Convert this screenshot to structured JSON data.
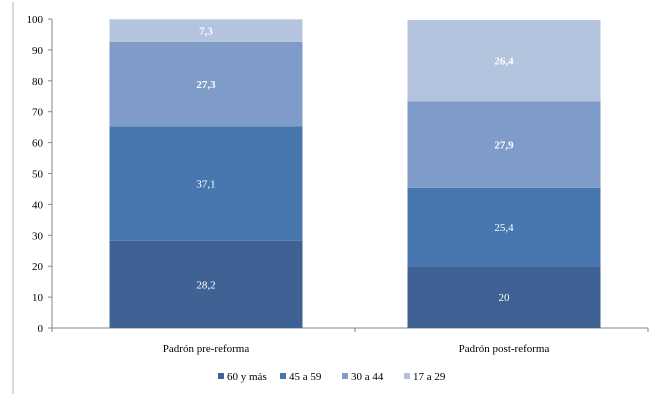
{
  "chart_data": {
    "type": "bar",
    "stacked": true,
    "title": "",
    "xlabel": "",
    "ylabel": "",
    "ylim": [
      0,
      100
    ],
    "yticks": [
      0,
      10,
      20,
      30,
      40,
      50,
      60,
      70,
      80,
      90,
      100
    ],
    "grid": false,
    "legend_position": "bottom",
    "categories": [
      "Padrón pre-reforma",
      "Padrón post-reforma"
    ],
    "series": [
      {
        "name": "60 y más",
        "color": "#3E6294",
        "values": [
          28.2,
          20
        ],
        "labels": [
          "28,2",
          "20"
        ],
        "bold": [
          false,
          false
        ]
      },
      {
        "name": "45 a 59",
        "color": "#4877B0",
        "values": [
          37.1,
          25.4
        ],
        "labels": [
          "37,1",
          "25,4"
        ],
        "bold": [
          false,
          false
        ]
      },
      {
        "name": "30 a 44",
        "color": "#7F9CC8",
        "values": [
          27.3,
          27.9
        ],
        "labels": [
          "27,3",
          "27,9"
        ],
        "bold": [
          true,
          true
        ]
      },
      {
        "name": "17 a 29",
        "color": "#B4C3DE",
        "values": [
          7.3,
          26.4
        ],
        "labels": [
          "7,3",
          "26,4"
        ],
        "bold": [
          true,
          true
        ]
      }
    ]
  }
}
